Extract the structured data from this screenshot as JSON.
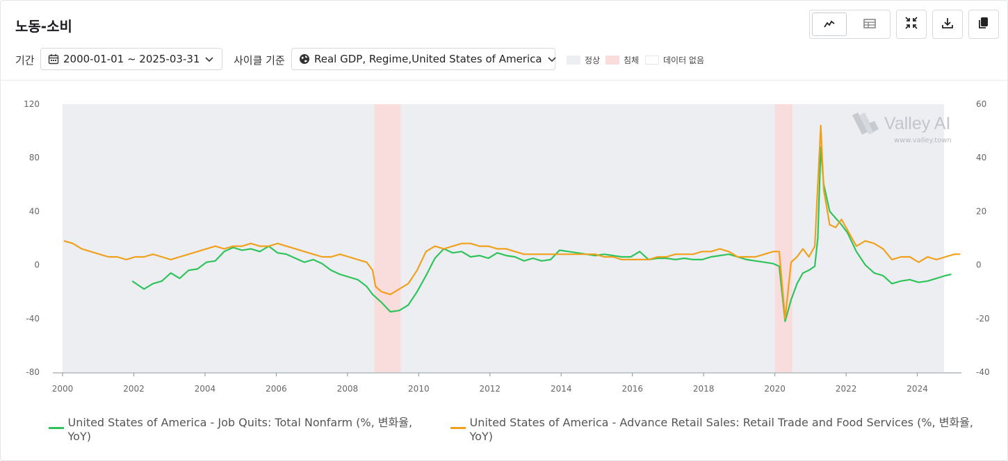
{
  "header": {
    "title": "노동-소비"
  },
  "toolbar": {
    "view_line_icon": "line-chart-icon",
    "view_table_icon": "table-icon",
    "collapse_icon": "collapse-icon",
    "download_icon": "download-icon",
    "copy_icon": "copy-icon"
  },
  "filters": {
    "period_label": "기간",
    "period_value": "2000-01-01 ~ 2025-03-31",
    "cycle_label": "사이클 기준",
    "cycle_value": "Real GDP, Regime,United States of America"
  },
  "regime_legend": [
    {
      "label": "정상",
      "color": "#eceef2"
    },
    {
      "label": "침체",
      "color": "#f9dcdc"
    },
    {
      "label": "데이터 없음",
      "color": "#ffffff"
    }
  ],
  "watermark": {
    "brand": "Valley AI",
    "url": "www.valley.town"
  },
  "chart_data": {
    "type": "line",
    "x_type": "date",
    "x_range": [
      "2000-01-01",
      "2025-03-31"
    ],
    "x_ticks": [
      "2000",
      "2002",
      "2004",
      "2006",
      "2008",
      "2010",
      "2012",
      "2014",
      "2016",
      "2018",
      "2020",
      "2022",
      "2024"
    ],
    "y_left": {
      "range": [
        -80,
        120
      ],
      "ticks": [
        120,
        80,
        40,
        0,
        -40,
        -80
      ]
    },
    "y_right": {
      "range": [
        -40,
        60
      ],
      "ticks": [
        60,
        40,
        20,
        0,
        -20,
        -40
      ]
    },
    "regimes": [
      {
        "type": "normal",
        "start": "2000-01-01",
        "end": "2008-09-30",
        "color": "#eceef2"
      },
      {
        "type": "recession",
        "start": "2008-10-01",
        "end": "2009-06-30",
        "color": "#f9dcdc"
      },
      {
        "type": "normal",
        "start": "2009-07-01",
        "end": "2019-12-31",
        "color": "#eceef2"
      },
      {
        "type": "recession",
        "start": "2020-01-01",
        "end": "2020-06-30",
        "color": "#f9dcdc"
      },
      {
        "type": "normal",
        "start": "2020-07-01",
        "end": "2024-09-30",
        "color": "#eceef2"
      }
    ],
    "series": [
      {
        "name": "United States of America - Job Quits: Total Nonfarm (%, 변화율, YoY)",
        "axis": "left",
        "color": "#2ec45a",
        "points": [
          [
            "2001-12",
            -12
          ],
          [
            "2002-02",
            -15
          ],
          [
            "2002-04",
            -18
          ],
          [
            "2002-07",
            -14
          ],
          [
            "2002-10",
            -12
          ],
          [
            "2003-01",
            -6
          ],
          [
            "2003-04",
            -10
          ],
          [
            "2003-07",
            -4
          ],
          [
            "2003-10",
            -3
          ],
          [
            "2004-01",
            2
          ],
          [
            "2004-04",
            3
          ],
          [
            "2004-07",
            10
          ],
          [
            "2004-10",
            13
          ],
          [
            "2005-01",
            11
          ],
          [
            "2005-04",
            12
          ],
          [
            "2005-07",
            10
          ],
          [
            "2005-10",
            14
          ],
          [
            "2006-01",
            9
          ],
          [
            "2006-04",
            8
          ],
          [
            "2006-07",
            5
          ],
          [
            "2006-10",
            2
          ],
          [
            "2007-01",
            4
          ],
          [
            "2007-04",
            1
          ],
          [
            "2007-07",
            -4
          ],
          [
            "2007-10",
            -7
          ],
          [
            "2008-01",
            -9
          ],
          [
            "2008-04",
            -11
          ],
          [
            "2008-07",
            -16
          ],
          [
            "2008-09",
            -22
          ],
          [
            "2008-12",
            -28
          ],
          [
            "2009-03",
            -35
          ],
          [
            "2009-06",
            -34
          ],
          [
            "2009-09",
            -30
          ],
          [
            "2009-12",
            -20
          ],
          [
            "2010-03",
            -8
          ],
          [
            "2010-06",
            5
          ],
          [
            "2010-09",
            12
          ],
          [
            "2010-12",
            9
          ],
          [
            "2011-03",
            10
          ],
          [
            "2011-06",
            6
          ],
          [
            "2011-09",
            7
          ],
          [
            "2011-12",
            5
          ],
          [
            "2012-03",
            9
          ],
          [
            "2012-06",
            7
          ],
          [
            "2012-09",
            6
          ],
          [
            "2012-12",
            3
          ],
          [
            "2013-03",
            5
          ],
          [
            "2013-06",
            3
          ],
          [
            "2013-09",
            4
          ],
          [
            "2013-12",
            11
          ],
          [
            "2014-03",
            10
          ],
          [
            "2014-06",
            9
          ],
          [
            "2014-09",
            8
          ],
          [
            "2014-12",
            7
          ],
          [
            "2015-03",
            8
          ],
          [
            "2015-06",
            7
          ],
          [
            "2015-09",
            6
          ],
          [
            "2015-12",
            6
          ],
          [
            "2016-03",
            10
          ],
          [
            "2016-06",
            4
          ],
          [
            "2016-09",
            5
          ],
          [
            "2016-12",
            5
          ],
          [
            "2017-03",
            4
          ],
          [
            "2017-06",
            5
          ],
          [
            "2017-09",
            4
          ],
          [
            "2017-12",
            4
          ],
          [
            "2018-03",
            6
          ],
          [
            "2018-06",
            7
          ],
          [
            "2018-09",
            8
          ],
          [
            "2018-12",
            6
          ],
          [
            "2019-03",
            4
          ],
          [
            "2019-06",
            3
          ],
          [
            "2019-09",
            2
          ],
          [
            "2019-12",
            1
          ],
          [
            "2020-02",
            -1
          ],
          [
            "2020-04",
            -42
          ],
          [
            "2020-06",
            -26
          ],
          [
            "2020-08",
            -14
          ],
          [
            "2020-10",
            -6
          ],
          [
            "2020-12",
            -4
          ],
          [
            "2021-02",
            -1
          ],
          [
            "2021-03",
            20
          ],
          [
            "2021-04",
            88
          ],
          [
            "2021-05",
            60
          ],
          [
            "2021-07",
            40
          ],
          [
            "2021-09",
            35
          ],
          [
            "2021-11",
            30
          ],
          [
            "2022-01",
            24
          ],
          [
            "2022-04",
            10
          ],
          [
            "2022-07",
            0
          ],
          [
            "2022-10",
            -6
          ],
          [
            "2023-01",
            -8
          ],
          [
            "2023-04",
            -14
          ],
          [
            "2023-07",
            -12
          ],
          [
            "2023-10",
            -11
          ],
          [
            "2024-01",
            -13
          ],
          [
            "2024-04",
            -12
          ],
          [
            "2024-07",
            -10
          ],
          [
            "2024-10",
            -8
          ],
          [
            "2024-12",
            -7
          ]
        ]
      },
      {
        "name": "United States of America - Advance Retail Sales: Retail Trade and Food Services (%, 변화율, YoY)",
        "axis": "right",
        "color": "#f0a01b",
        "points": [
          [
            "2000-01",
            9
          ],
          [
            "2000-04",
            8
          ],
          [
            "2000-07",
            6
          ],
          [
            "2000-10",
            5
          ],
          [
            "2001-01",
            4
          ],
          [
            "2001-04",
            3
          ],
          [
            "2001-07",
            3
          ],
          [
            "2001-10",
            2
          ],
          [
            "2002-01",
            3
          ],
          [
            "2002-04",
            3
          ],
          [
            "2002-07",
            4
          ],
          [
            "2002-10",
            3
          ],
          [
            "2003-01",
            2
          ],
          [
            "2003-04",
            3
          ],
          [
            "2003-07",
            4
          ],
          [
            "2003-10",
            5
          ],
          [
            "2004-01",
            6
          ],
          [
            "2004-04",
            7
          ],
          [
            "2004-07",
            6
          ],
          [
            "2004-10",
            7
          ],
          [
            "2005-01",
            7
          ],
          [
            "2005-04",
            8
          ],
          [
            "2005-07",
            7
          ],
          [
            "2005-10",
            7
          ],
          [
            "2006-01",
            8
          ],
          [
            "2006-04",
            7
          ],
          [
            "2006-07",
            6
          ],
          [
            "2006-10",
            5
          ],
          [
            "2007-01",
            4
          ],
          [
            "2007-04",
            3
          ],
          [
            "2007-07",
            3
          ],
          [
            "2007-10",
            4
          ],
          [
            "2008-01",
            3
          ],
          [
            "2008-04",
            2
          ],
          [
            "2008-07",
            1
          ],
          [
            "2008-09",
            -2
          ],
          [
            "2008-10",
            -8
          ],
          [
            "2008-12",
            -10
          ],
          [
            "2009-03",
            -11
          ],
          [
            "2009-06",
            -9
          ],
          [
            "2009-09",
            -7
          ],
          [
            "2009-12",
            -2
          ],
          [
            "2010-03",
            5
          ],
          [
            "2010-06",
            7
          ],
          [
            "2010-09",
            6
          ],
          [
            "2010-12",
            7
          ],
          [
            "2011-03",
            8
          ],
          [
            "2011-06",
            8
          ],
          [
            "2011-09",
            7
          ],
          [
            "2011-12",
            7
          ],
          [
            "2012-03",
            6
          ],
          [
            "2012-06",
            6
          ],
          [
            "2012-09",
            5
          ],
          [
            "2012-12",
            4
          ],
          [
            "2013-03",
            4
          ],
          [
            "2013-06",
            4
          ],
          [
            "2013-09",
            4
          ],
          [
            "2013-12",
            4
          ],
          [
            "2014-03",
            4
          ],
          [
            "2014-06",
            4
          ],
          [
            "2014-09",
            4
          ],
          [
            "2014-12",
            4
          ],
          [
            "2015-03",
            3
          ],
          [
            "2015-06",
            3
          ],
          [
            "2015-09",
            2
          ],
          [
            "2015-12",
            2
          ],
          [
            "2016-03",
            2
          ],
          [
            "2016-06",
            2
          ],
          [
            "2016-09",
            3
          ],
          [
            "2016-12",
            3
          ],
          [
            "2017-03",
            4
          ],
          [
            "2017-06",
            4
          ],
          [
            "2017-09",
            4
          ],
          [
            "2017-12",
            5
          ],
          [
            "2018-03",
            5
          ],
          [
            "2018-06",
            6
          ],
          [
            "2018-09",
            5
          ],
          [
            "2018-12",
            3
          ],
          [
            "2019-03",
            3
          ],
          [
            "2019-06",
            3
          ],
          [
            "2019-09",
            4
          ],
          [
            "2019-12",
            5
          ],
          [
            "2020-02",
            5
          ],
          [
            "2020-04",
            -20
          ],
          [
            "2020-06",
            1
          ],
          [
            "2020-08",
            3
          ],
          [
            "2020-10",
            6
          ],
          [
            "2020-12",
            3
          ],
          [
            "2021-02",
            7
          ],
          [
            "2021-03",
            30
          ],
          [
            "2021-04",
            52
          ],
          [
            "2021-05",
            28
          ],
          [
            "2021-07",
            15
          ],
          [
            "2021-09",
            14
          ],
          [
            "2021-11",
            17
          ],
          [
            "2022-01",
            13
          ],
          [
            "2022-04",
            7
          ],
          [
            "2022-07",
            9
          ],
          [
            "2022-10",
            8
          ],
          [
            "2023-01",
            6
          ],
          [
            "2023-04",
            2
          ],
          [
            "2023-07",
            3
          ],
          [
            "2023-10",
            3
          ],
          [
            "2024-01",
            1
          ],
          [
            "2024-04",
            3
          ],
          [
            "2024-07",
            2
          ],
          [
            "2024-10",
            3
          ],
          [
            "2025-01",
            4
          ],
          [
            "2025-03",
            4
          ]
        ]
      }
    ]
  }
}
